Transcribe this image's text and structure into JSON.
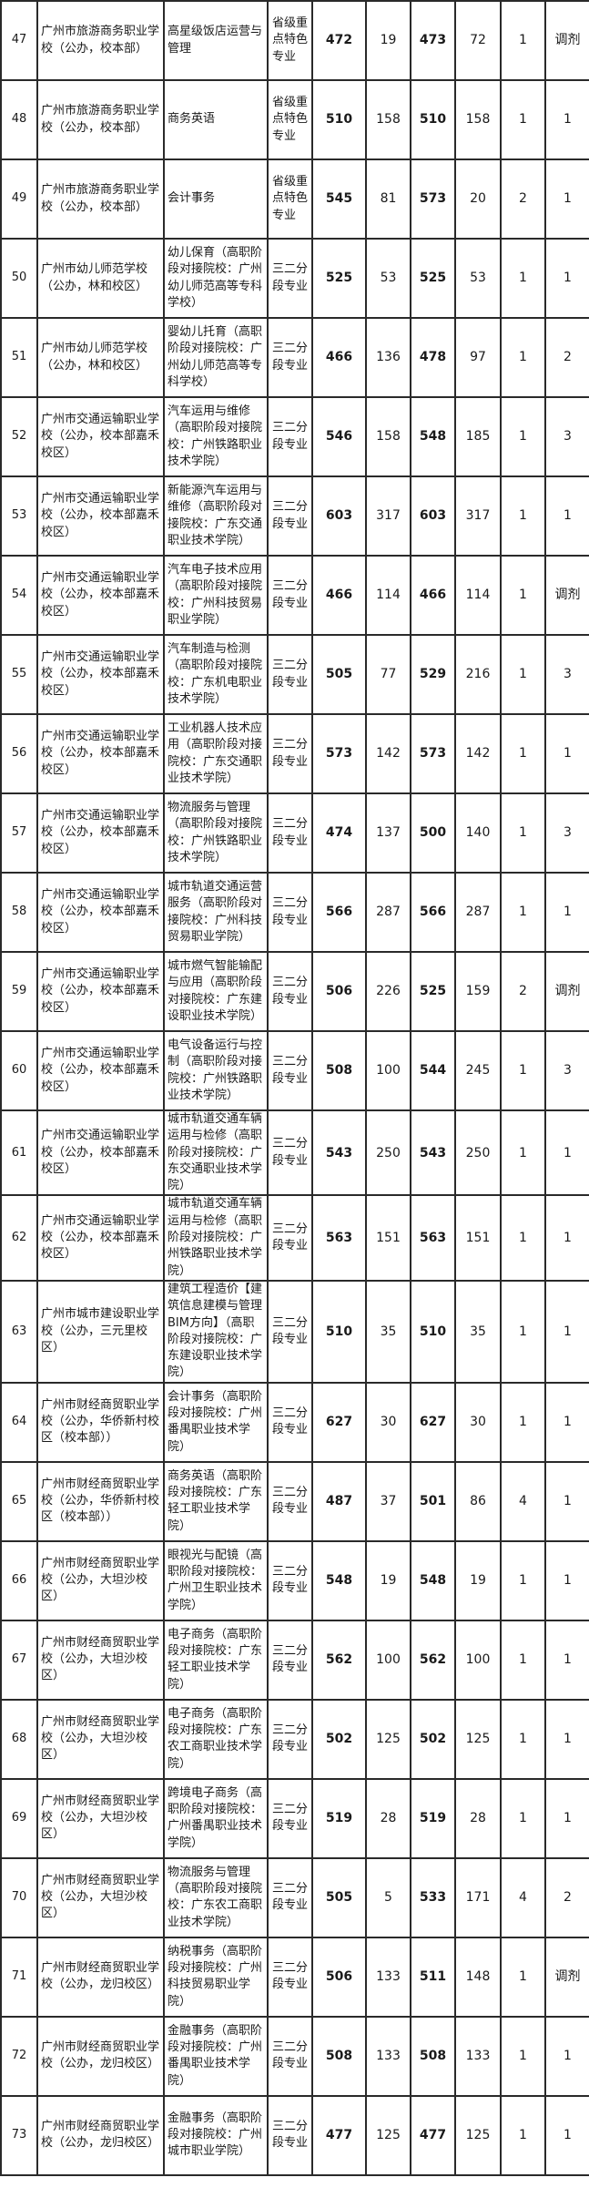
{
  "rows": [
    {
      "no": "47",
      "school": "广州市旅游商务职业学校（公办，校本部）",
      "major": "高星级饭店运营与管理",
      "type": "省级重点特色专业",
      "score1": "472",
      "rank1": "19",
      "score2": "473",
      "rank2": "72",
      "c1": "1",
      "c2": "调剂"
    },
    {
      "no": "48",
      "school": "广州市旅游商务职业学校（公办，校本部）",
      "major": "商务英语",
      "type": "省级重点特色专业",
      "score1": "510",
      "rank1": "158",
      "score2": "510",
      "rank2": "158",
      "c1": "1",
      "c2": "1"
    },
    {
      "no": "49",
      "school": "广州市旅游商务职业学校（公办，校本部）",
      "major": "会计事务",
      "type": "省级重点特色专业",
      "score1": "545",
      "rank1": "81",
      "score2": "573",
      "rank2": "20",
      "c1": "2",
      "c2": "1"
    },
    {
      "no": "50",
      "school": "广州市幼儿师范学校（公办，林和校区）",
      "major": "幼儿保育（高职阶段对接院校：广州幼儿师范高等专科学校）",
      "type": "三二分段专业",
      "score1": "525",
      "rank1": "53",
      "score2": "525",
      "rank2": "53",
      "c1": "1",
      "c2": "1"
    },
    {
      "no": "51",
      "school": "广州市幼儿师范学校（公办，林和校区）",
      "major": "婴幼儿托育（高职阶段对接院校：广州幼儿师范高等专科学校）",
      "type": "三二分段专业",
      "score1": "466",
      "rank1": "136",
      "score2": "478",
      "rank2": "97",
      "c1": "1",
      "c2": "2"
    },
    {
      "no": "52",
      "school": "广州市交通运输职业学校（公办，校本部嘉禾校区）",
      "major": "汽车运用与维修（高职阶段对接院校：广州铁路职业技术学院）",
      "type": "三二分段专业",
      "score1": "546",
      "rank1": "158",
      "score2": "548",
      "rank2": "185",
      "c1": "1",
      "c2": "3"
    },
    {
      "no": "53",
      "school": "广州市交通运输职业学校（公办，校本部嘉禾校区）",
      "major": "新能源汽车运用与维修（高职阶段对接院校：广东交通职业技术学院）",
      "type": "三二分段专业",
      "score1": "603",
      "rank1": "317",
      "score2": "603",
      "rank2": "317",
      "c1": "1",
      "c2": "1"
    },
    {
      "no": "54",
      "school": "广州市交通运输职业学校（公办，校本部嘉禾校区）",
      "major": "汽车电子技术应用（高职阶段对接院校：广州科技贸易职业学院）",
      "type": "三二分段专业",
      "score1": "466",
      "rank1": "114",
      "score2": "466",
      "rank2": "114",
      "c1": "1",
      "c2": "调剂"
    },
    {
      "no": "55",
      "school": "广州市交通运输职业学校（公办，校本部嘉禾校区）",
      "major": "汽车制造与检测（高职阶段对接院校：广东机电职业技术学院）",
      "type": "三二分段专业",
      "score1": "505",
      "rank1": "77",
      "score2": "529",
      "rank2": "216",
      "c1": "1",
      "c2": "3"
    },
    {
      "no": "56",
      "school": "广州市交通运输职业学校（公办，校本部嘉禾校区）",
      "major": "工业机器人技术应用（高职阶段对接院校：广东交通职业技术学院）",
      "type": "三二分段专业",
      "score1": "573",
      "rank1": "142",
      "score2": "573",
      "rank2": "142",
      "c1": "1",
      "c2": "1"
    },
    {
      "no": "57",
      "school": "广州市交通运输职业学校（公办，校本部嘉禾校区）",
      "major": "物流服务与管理（高职阶段对接院校：广州铁路职业技术学院）",
      "type": "三二分段专业",
      "score1": "474",
      "rank1": "137",
      "score2": "500",
      "rank2": "140",
      "c1": "1",
      "c2": "3"
    },
    {
      "no": "58",
      "school": "广州市交通运输职业学校（公办，校本部嘉禾校区）",
      "major": "城市轨道交通运营服务（高职阶段对接院校：广州科技贸易职业学院）",
      "type": "三二分段专业",
      "score1": "566",
      "rank1": "287",
      "score2": "566",
      "rank2": "287",
      "c1": "1",
      "c2": "1"
    },
    {
      "no": "59",
      "school": "广州市交通运输职业学校（公办，校本部嘉禾校区）",
      "major": "城市燃气智能输配与应用（高职阶段对接院校：广东建设职业技术学院）",
      "type": "三二分段专业",
      "score1": "506",
      "rank1": "226",
      "score2": "525",
      "rank2": "159",
      "c1": "2",
      "c2": "调剂"
    },
    {
      "no": "60",
      "school": "广州市交通运输职业学校（公办，校本部嘉禾校区）",
      "major": "电气设备运行与控制（高职阶段对接院校：广州铁路职业技术学院）",
      "type": "三二分段专业",
      "score1": "508",
      "rank1": "100",
      "score2": "544",
      "rank2": "245",
      "c1": "1",
      "c2": "3"
    },
    {
      "no": "61",
      "school": "广州市交通运输职业学校（公办，校本部嘉禾校区）",
      "major": "城市轨道交通车辆运用与检修（高职阶段对接院校：广东交通职业技术学院）",
      "type": "三二分段专业",
      "score1": "543",
      "rank1": "250",
      "score2": "543",
      "rank2": "250",
      "c1": "1",
      "c2": "1"
    },
    {
      "no": "62",
      "school": "广州市交通运输职业学校（公办，校本部嘉禾校区）",
      "major": "城市轨道交通车辆运用与检修（高职阶段对接院校：广州铁路职业技术学院）",
      "type": "三二分段专业",
      "score1": "563",
      "rank1": "151",
      "score2": "563",
      "rank2": "151",
      "c1": "1",
      "c2": "1"
    },
    {
      "no": "63",
      "school": "广州市城市建设职业学校（公办，三元里校区）",
      "major": "建筑工程造价【建筑信息建模与管理BIM方向】（高职阶段对接院校：广东建设职业技术学院）",
      "type": "三二分段专业",
      "score1": "510",
      "rank1": "35",
      "score2": "510",
      "rank2": "35",
      "c1": "1",
      "c2": "1"
    },
    {
      "no": "64",
      "school": "广州市财经商贸职业学校（公办，华侨新村校区（校本部））",
      "major": "会计事务（高职阶段对接院校：广州番禺职业技术学院）",
      "type": "三二分段专业",
      "score1": "627",
      "rank1": "30",
      "score2": "627",
      "rank2": "30",
      "c1": "1",
      "c2": "1"
    },
    {
      "no": "65",
      "school": "广州市财经商贸职业学校（公办，华侨新村校区（校本部））",
      "major": "商务英语（高职阶段对接院校：广东轻工职业技术学院）",
      "type": "三二分段专业",
      "score1": "487",
      "rank1": "37",
      "score2": "501",
      "rank2": "86",
      "c1": "4",
      "c2": "1"
    },
    {
      "no": "66",
      "school": "广州市财经商贸职业学校（公办，大坦沙校区）",
      "major": "眼视光与配镜（高职阶段对接院校：广州卫生职业技术学院）",
      "type": "三二分段专业",
      "score1": "548",
      "rank1": "19",
      "score2": "548",
      "rank2": "19",
      "c1": "1",
      "c2": "1"
    },
    {
      "no": "67",
      "school": "广州市财经商贸职业学校（公办，大坦沙校区）",
      "major": "电子商务（高职阶段对接院校：广东轻工职业技术学院）",
      "type": "三二分段专业",
      "score1": "562",
      "rank1": "100",
      "score2": "562",
      "rank2": "100",
      "c1": "1",
      "c2": "1"
    },
    {
      "no": "68",
      "school": "广州市财经商贸职业学校（公办，大坦沙校区）",
      "major": "电子商务（高职阶段对接院校：广东农工商职业技术学院）",
      "type": "三二分段专业",
      "score1": "502",
      "rank1": "125",
      "score2": "502",
      "rank2": "125",
      "c1": "1",
      "c2": "1"
    },
    {
      "no": "69",
      "school": "广州市财经商贸职业学校（公办，大坦沙校区）",
      "major": "跨境电子商务（高职阶段对接院校：广州番禺职业技术学院）",
      "type": "三二分段专业",
      "score1": "519",
      "rank1": "28",
      "score2": "519",
      "rank2": "28",
      "c1": "1",
      "c2": "1"
    },
    {
      "no": "70",
      "school": "广州市财经商贸职业学校（公办，大坦沙校区）",
      "major": "物流服务与管理（高职阶段对接院校：广东农工商职业技术学院）",
      "type": "三二分段专业",
      "score1": "505",
      "rank1": "5",
      "score2": "533",
      "rank2": "171",
      "c1": "4",
      "c2": "2"
    },
    {
      "no": "71",
      "school": "广州市财经商贸职业学校（公办，龙归校区）",
      "major": "纳税事务（高职阶段对接院校：广州科技贸易职业学院）",
      "type": "三二分段专业",
      "score1": "506",
      "rank1": "133",
      "score2": "511",
      "rank2": "148",
      "c1": "1",
      "c2": "调剂"
    },
    {
      "no": "72",
      "school": "广州市财经商贸职业学校（公办，龙归校区）",
      "major": "金融事务（高职阶段对接院校：广州番禺职业技术学院）",
      "type": "三二分段专业",
      "score1": "508",
      "rank1": "133",
      "score2": "508",
      "rank2": "133",
      "c1": "1",
      "c2": "1"
    },
    {
      "no": "73",
      "school": "广州市财经商贸职业学校（公办，龙归校区）",
      "major": "金融事务（高职阶段对接院校：广州城市职业学院）",
      "type": "三二分段专业",
      "score1": "477",
      "rank1": "125",
      "score2": "477",
      "rank2": "125",
      "c1": "1",
      "c2": "1"
    }
  ]
}
